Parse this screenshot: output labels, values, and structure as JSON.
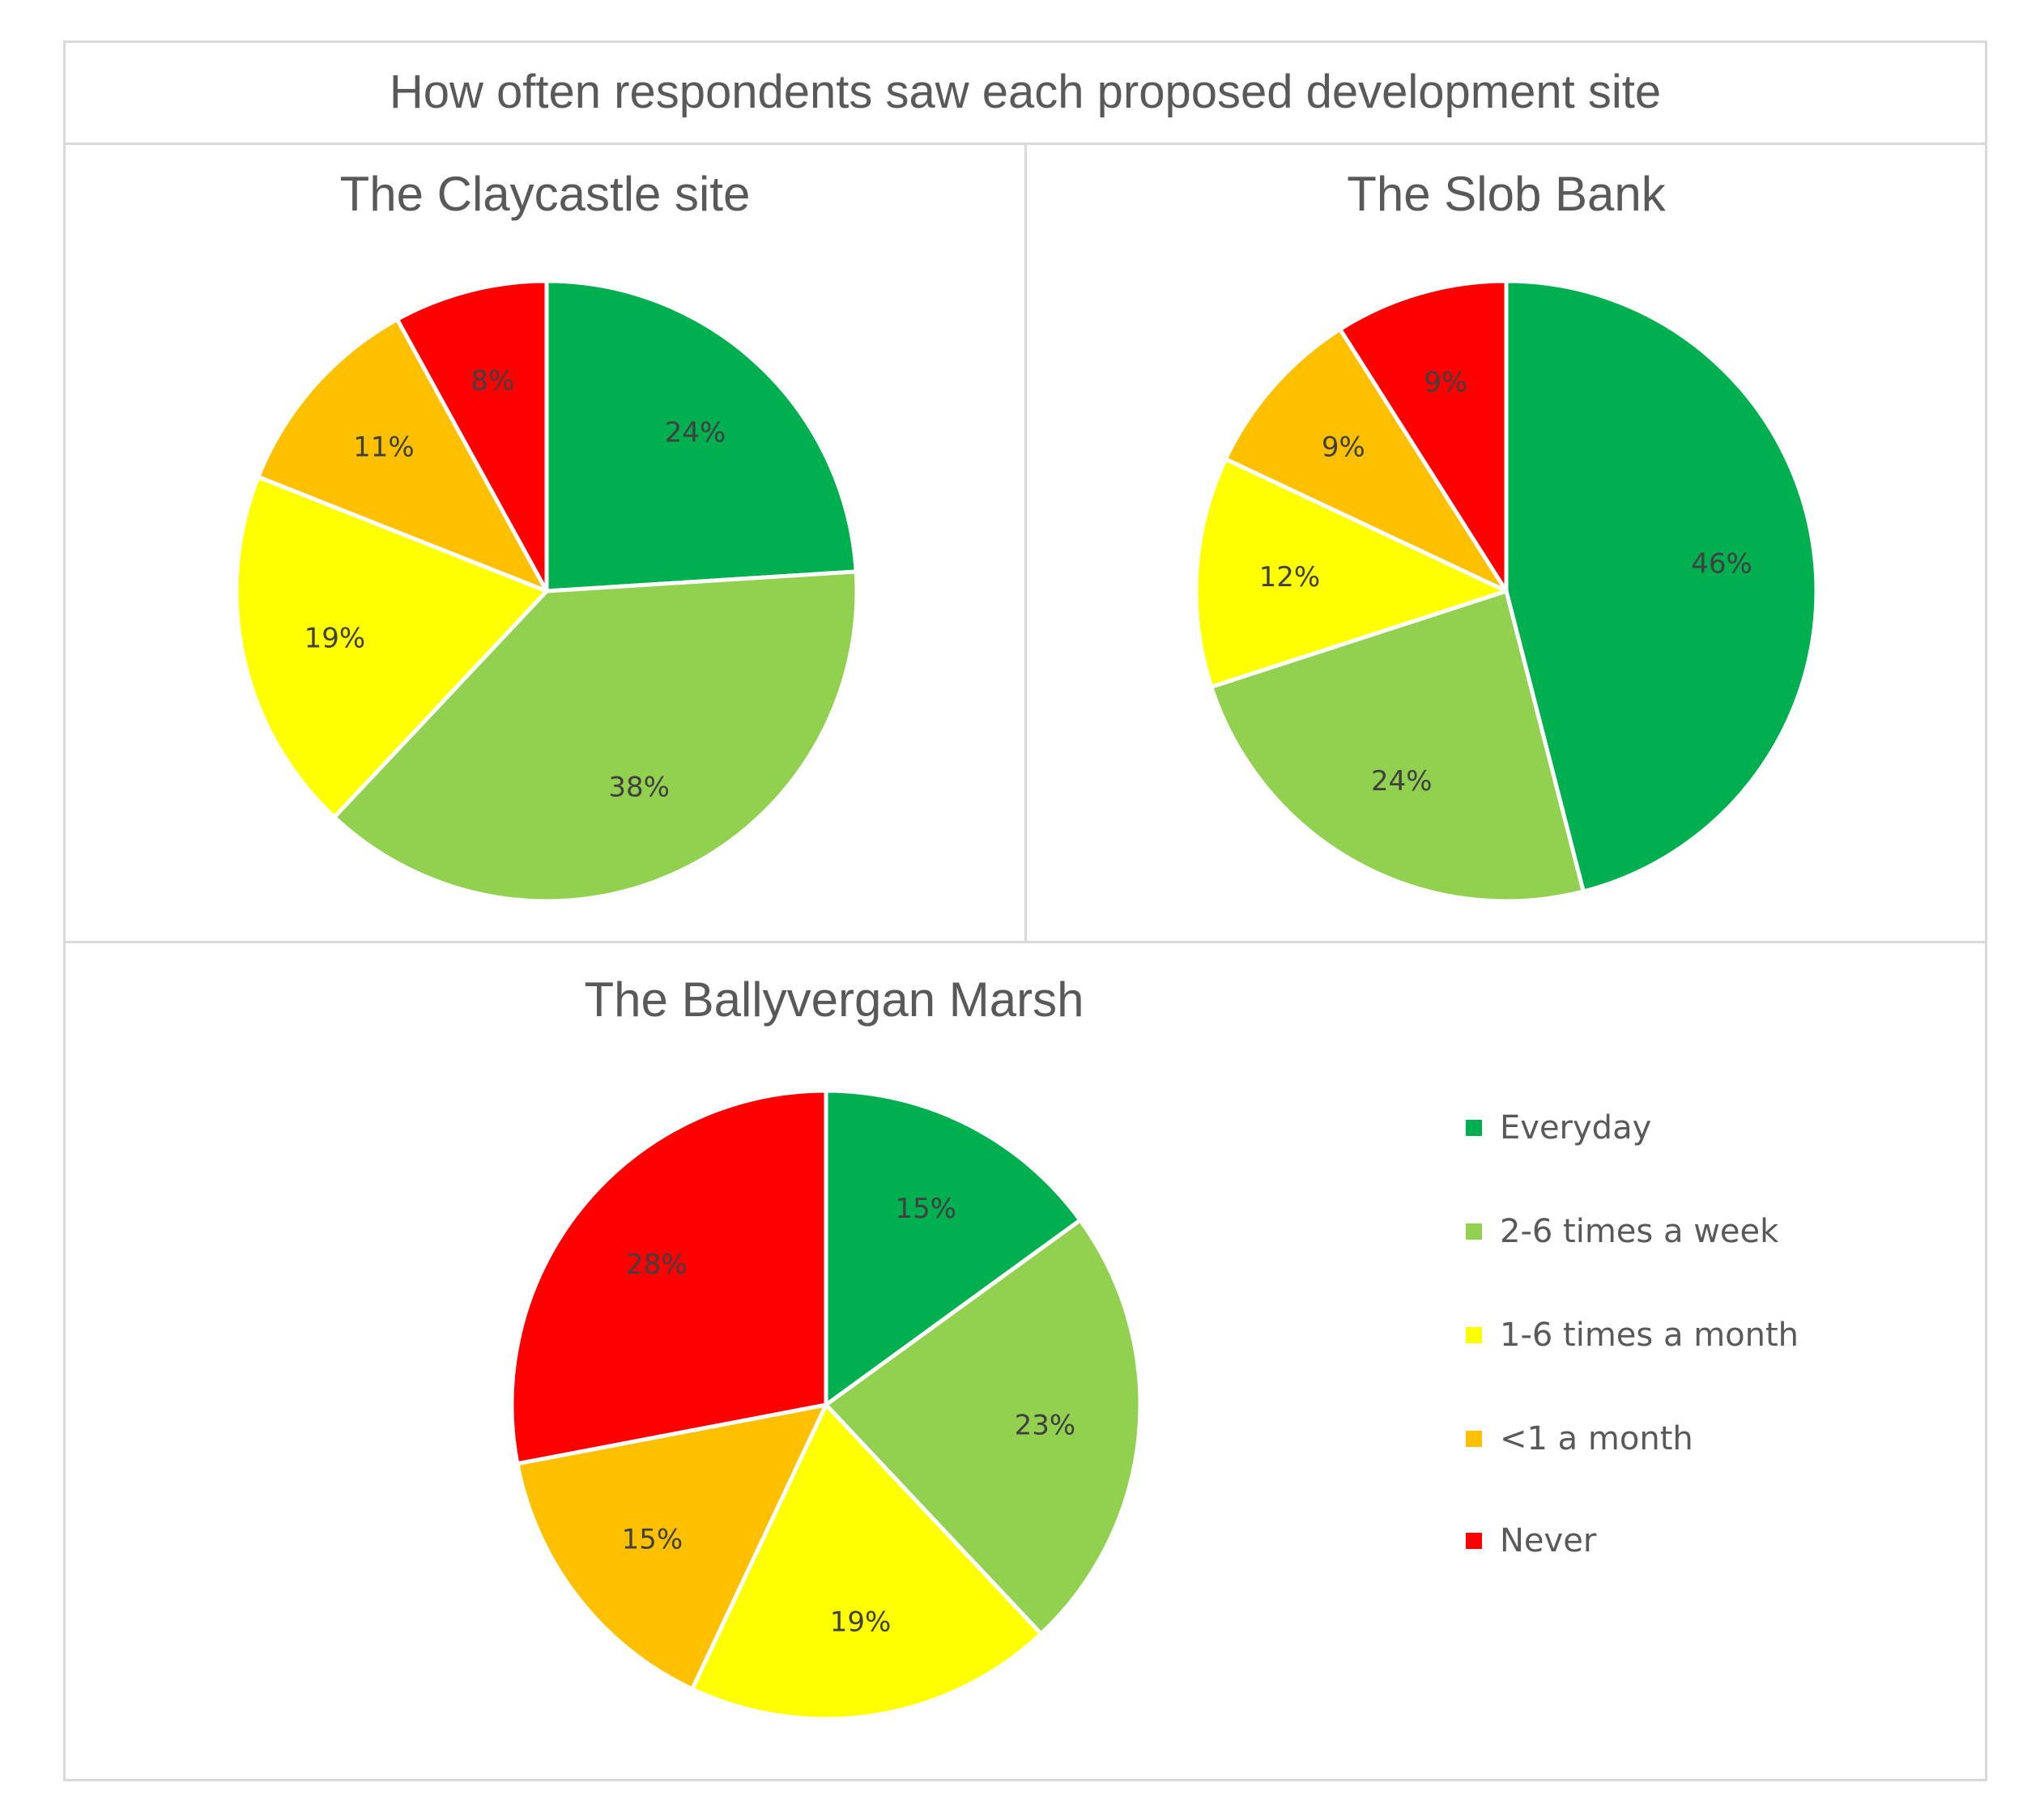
{
  "chart_data": {
    "type": "pie",
    "title": "How often respondents saw each proposed development site",
    "legend": {
      "placement": "right",
      "entries": [
        {
          "label": "Everyday",
          "color": "#00b050"
        },
        {
          "label": "2-6 times a week",
          "color": "#92d050"
        },
        {
          "label": "1-6 times a month",
          "color": "#ffff00"
        },
        {
          "label": "<1 a month",
          "color": "#ffc000"
        },
        {
          "label": "Never",
          "color": "#ff0000"
        }
      ]
    },
    "charts": [
      {
        "title": "The Claycastle site",
        "slices": [
          {
            "category": "Everyday",
            "value": 24,
            "label": "24%"
          },
          {
            "category": "2-6 times a week",
            "value": 38,
            "label": "38%"
          },
          {
            "category": "1-6 times a month",
            "value": 19,
            "label": "19%"
          },
          {
            "category": "<1 a month",
            "value": 11,
            "label": "11%"
          },
          {
            "category": "Never",
            "value": 8,
            "label": "8%"
          }
        ]
      },
      {
        "title": "The Slob Bank",
        "slices": [
          {
            "category": "Everyday",
            "value": 46,
            "label": "46%"
          },
          {
            "category": "2-6 times a week",
            "value": 24,
            "label": "24%"
          },
          {
            "category": "1-6 times a month",
            "value": 12,
            "label": "12%"
          },
          {
            "category": "<1 a month",
            "value": 9,
            "label": "9%"
          },
          {
            "category": "Never",
            "value": 9,
            "label": "9%"
          }
        ]
      },
      {
        "title": "The Ballyvergan Marsh",
        "slices": [
          {
            "category": "Everyday",
            "value": 15,
            "label": "15%"
          },
          {
            "category": "2-6 times a week",
            "value": 23,
            "label": "23%"
          },
          {
            "category": "1-6 times a month",
            "value": 19,
            "label": "19%"
          },
          {
            "category": "<1 a month",
            "value": 15,
            "label": "15%"
          },
          {
            "category": "Never",
            "value": 28,
            "label": "28%"
          }
        ]
      }
    ]
  }
}
